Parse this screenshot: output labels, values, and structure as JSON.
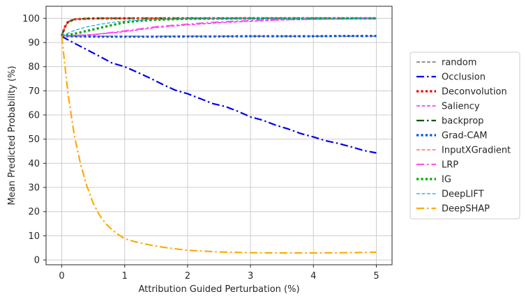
{
  "chart_data": {
    "type": "line",
    "title": "",
    "xlabel": "Attribution Guided Perturbation (%)",
    "ylabel": "Mean Predicted Probability (%)",
    "xlim": [
      -0.25,
      5.25
    ],
    "ylim": [
      -2,
      105
    ],
    "xticks": [
      0,
      1,
      2,
      3,
      4,
      5
    ],
    "yticks": [
      0,
      10,
      20,
      30,
      40,
      50,
      60,
      70,
      80,
      90,
      100
    ],
    "grid": true,
    "legend_position": "right",
    "series": [
      {
        "name": "random",
        "color": "#555555",
        "dash": "dashed",
        "width": 1.2,
        "x": [
          0,
          0.1,
          0.3,
          1,
          2,
          3,
          4,
          5
        ],
        "y": [
          92.7,
          92.6,
          92.6,
          92.6,
          92.6,
          92.6,
          92.6,
          92.6
        ]
      },
      {
        "name": "Occlusion",
        "color": "#0000ee",
        "dash": "dashdot",
        "width": 2.2,
        "x": [
          0,
          0.2,
          0.4,
          0.6,
          0.8,
          1.0,
          1.2,
          1.4,
          1.6,
          1.8,
          2.0,
          2.2,
          2.4,
          2.6,
          2.8,
          3.0,
          3.2,
          3.4,
          3.6,
          3.8,
          4.0,
          4.2,
          4.4,
          4.6,
          4.8,
          5.0
        ],
        "y": [
          92.5,
          89.7,
          87.0,
          84.3,
          81.5,
          80.0,
          77.7,
          75.3,
          72.7,
          70.3,
          68.8,
          66.8,
          64.7,
          63.5,
          61.5,
          59.2,
          57.8,
          55.8,
          54.2,
          52.3,
          50.9,
          49.3,
          48.2,
          46.8,
          45.3,
          44.3
        ]
      },
      {
        "name": "Deconvolution",
        "color": "#ee0000",
        "dash": "dotted",
        "width": 3.2,
        "x": [
          0,
          0.05,
          0.1,
          0.2,
          0.4,
          0.6,
          1,
          2,
          3,
          4,
          5
        ],
        "y": [
          92.7,
          96.5,
          98.5,
          99.6,
          99.9,
          100,
          100,
          100,
          100,
          100,
          100
        ]
      },
      {
        "name": "Saliency",
        "color": "#ee00ee",
        "dash": "dashed",
        "width": 1.2,
        "x": [
          0,
          0.5,
          1,
          1.5,
          2,
          2.5,
          3,
          3.5,
          4,
          4.5,
          5
        ],
        "y": [
          92.7,
          93.3,
          94.5,
          96.2,
          97.3,
          98.2,
          98.8,
          99.3,
          99.6,
          99.8,
          99.9
        ]
      },
      {
        "name": "backprop",
        "color": "#005500",
        "dash": "dashdot",
        "width": 2.2,
        "x": [
          0,
          0.05,
          0.1,
          0.2,
          0.4,
          0.6,
          1,
          2,
          3,
          4,
          5
        ],
        "y": [
          92.7,
          96.5,
          98.5,
          99.6,
          99.9,
          100,
          100,
          100,
          100,
          100,
          100
        ]
      },
      {
        "name": "Grad-CAM",
        "color": "#0055ee",
        "dash": "dotted",
        "width": 3.2,
        "x": [
          0,
          0.1,
          0.3,
          0.6,
          1,
          1.5,
          2,
          2.5,
          3,
          3.5,
          4,
          4.5,
          5
        ],
        "y": [
          92.7,
          92.6,
          92.5,
          92.4,
          92.4,
          92.4,
          92.5,
          92.5,
          92.6,
          92.6,
          92.6,
          92.7,
          92.7
        ]
      },
      {
        "name": "InputXGradient",
        "color": "#ff5533",
        "dash": "dashed",
        "width": 1.2,
        "x": [
          0,
          0.05,
          0.1,
          0.2,
          0.4,
          0.6,
          1,
          2,
          3,
          4,
          5
        ],
        "y": [
          92.7,
          96.5,
          98.5,
          99.6,
          99.9,
          100,
          100,
          100,
          100,
          100,
          100
        ]
      },
      {
        "name": "LRP",
        "color": "#ff55ee",
        "dash": "dashdot",
        "width": 2.2,
        "x": [
          0,
          0.5,
          1,
          1.5,
          2,
          2.5,
          3,
          3.5,
          4,
          4.5,
          5
        ],
        "y": [
          92.7,
          93.2,
          94.8,
          96.5,
          97.6,
          98.5,
          99.1,
          99.5,
          99.7,
          99.8,
          99.9
        ]
      },
      {
        "name": "IG",
        "color": "#00aa00",
        "dash": "dotted",
        "width": 3.2,
        "x": [
          0,
          0.2,
          0.4,
          0.6,
          0.8,
          1.0,
          1.2,
          1.5,
          2,
          2.5,
          3,
          4,
          5
        ],
        "y": [
          92.7,
          93.6,
          94.8,
          96.0,
          97.2,
          98.3,
          98.9,
          99.4,
          99.8,
          99.9,
          100,
          100,
          100
        ]
      },
      {
        "name": "DeepLIFT",
        "color": "#00aaee",
        "dash": "dashed",
        "width": 1.2,
        "x": [
          0,
          0.2,
          0.4,
          0.6,
          0.8,
          1.0,
          1.5,
          2,
          3,
          4,
          5
        ],
        "y": [
          92.7,
          95.0,
          96.5,
          97.5,
          98.3,
          98.9,
          99.5,
          99.8,
          99.9,
          100,
          100
        ]
      },
      {
        "name": "DeepSHAP",
        "color": "#ffaa00",
        "dash": "dashdot",
        "width": 2.2,
        "x": [
          0,
          0.1,
          0.2,
          0.3,
          0.4,
          0.5,
          0.6,
          0.7,
          0.8,
          0.9,
          1.0,
          1.2,
          1.4,
          1.6,
          1.8,
          2.0,
          2.5,
          3.0,
          3.5,
          4.0,
          4.5,
          5.0
        ],
        "y": [
          92.5,
          68.5,
          51.5,
          39.5,
          30.5,
          23.5,
          18.5,
          15.0,
          12.5,
          10.5,
          8.8,
          7.3,
          6.2,
          5.3,
          4.6,
          4.0,
          3.3,
          3.0,
          2.9,
          2.9,
          3.0,
          3.2
        ]
      }
    ]
  }
}
